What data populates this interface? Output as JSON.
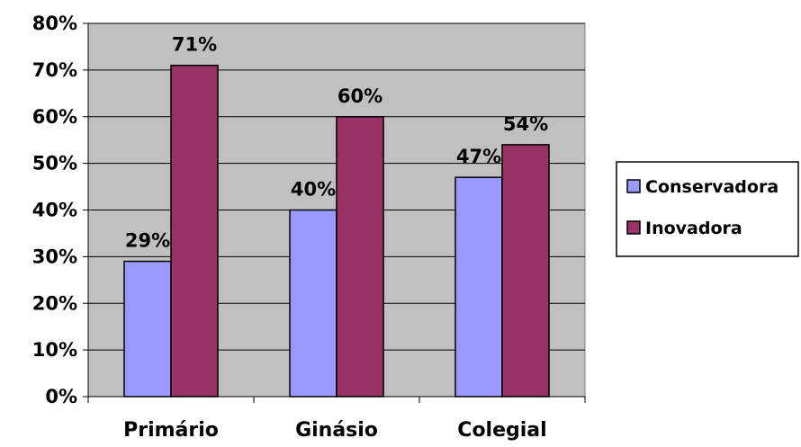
{
  "chart_data": {
    "type": "bar",
    "title": "",
    "xlabel": "",
    "ylabel": "",
    "categories": [
      "Primário",
      "Ginásio",
      "Colegial"
    ],
    "series": [
      {
        "name": "Conservadora",
        "values": [
          29,
          40,
          47
        ],
        "color": "#9999ff"
      },
      {
        "name": "Inovadora",
        "values": [
          71,
          60,
          54
        ],
        "color": "#993366"
      }
    ],
    "data_labels": [
      [
        "29%",
        "40%",
        "47%"
      ],
      [
        "71%",
        "60%",
        "54%"
      ]
    ],
    "ylim": [
      0,
      80
    ],
    "yticks": [
      0,
      10,
      20,
      30,
      40,
      50,
      60,
      70,
      80
    ],
    "ytick_labels": [
      "0%",
      "10%",
      "20%",
      "30%",
      "40%",
      "50%",
      "60%",
      "70%",
      "80%"
    ],
    "grid": true,
    "plot_background": "#c0c0c0",
    "legend_position": "right"
  }
}
